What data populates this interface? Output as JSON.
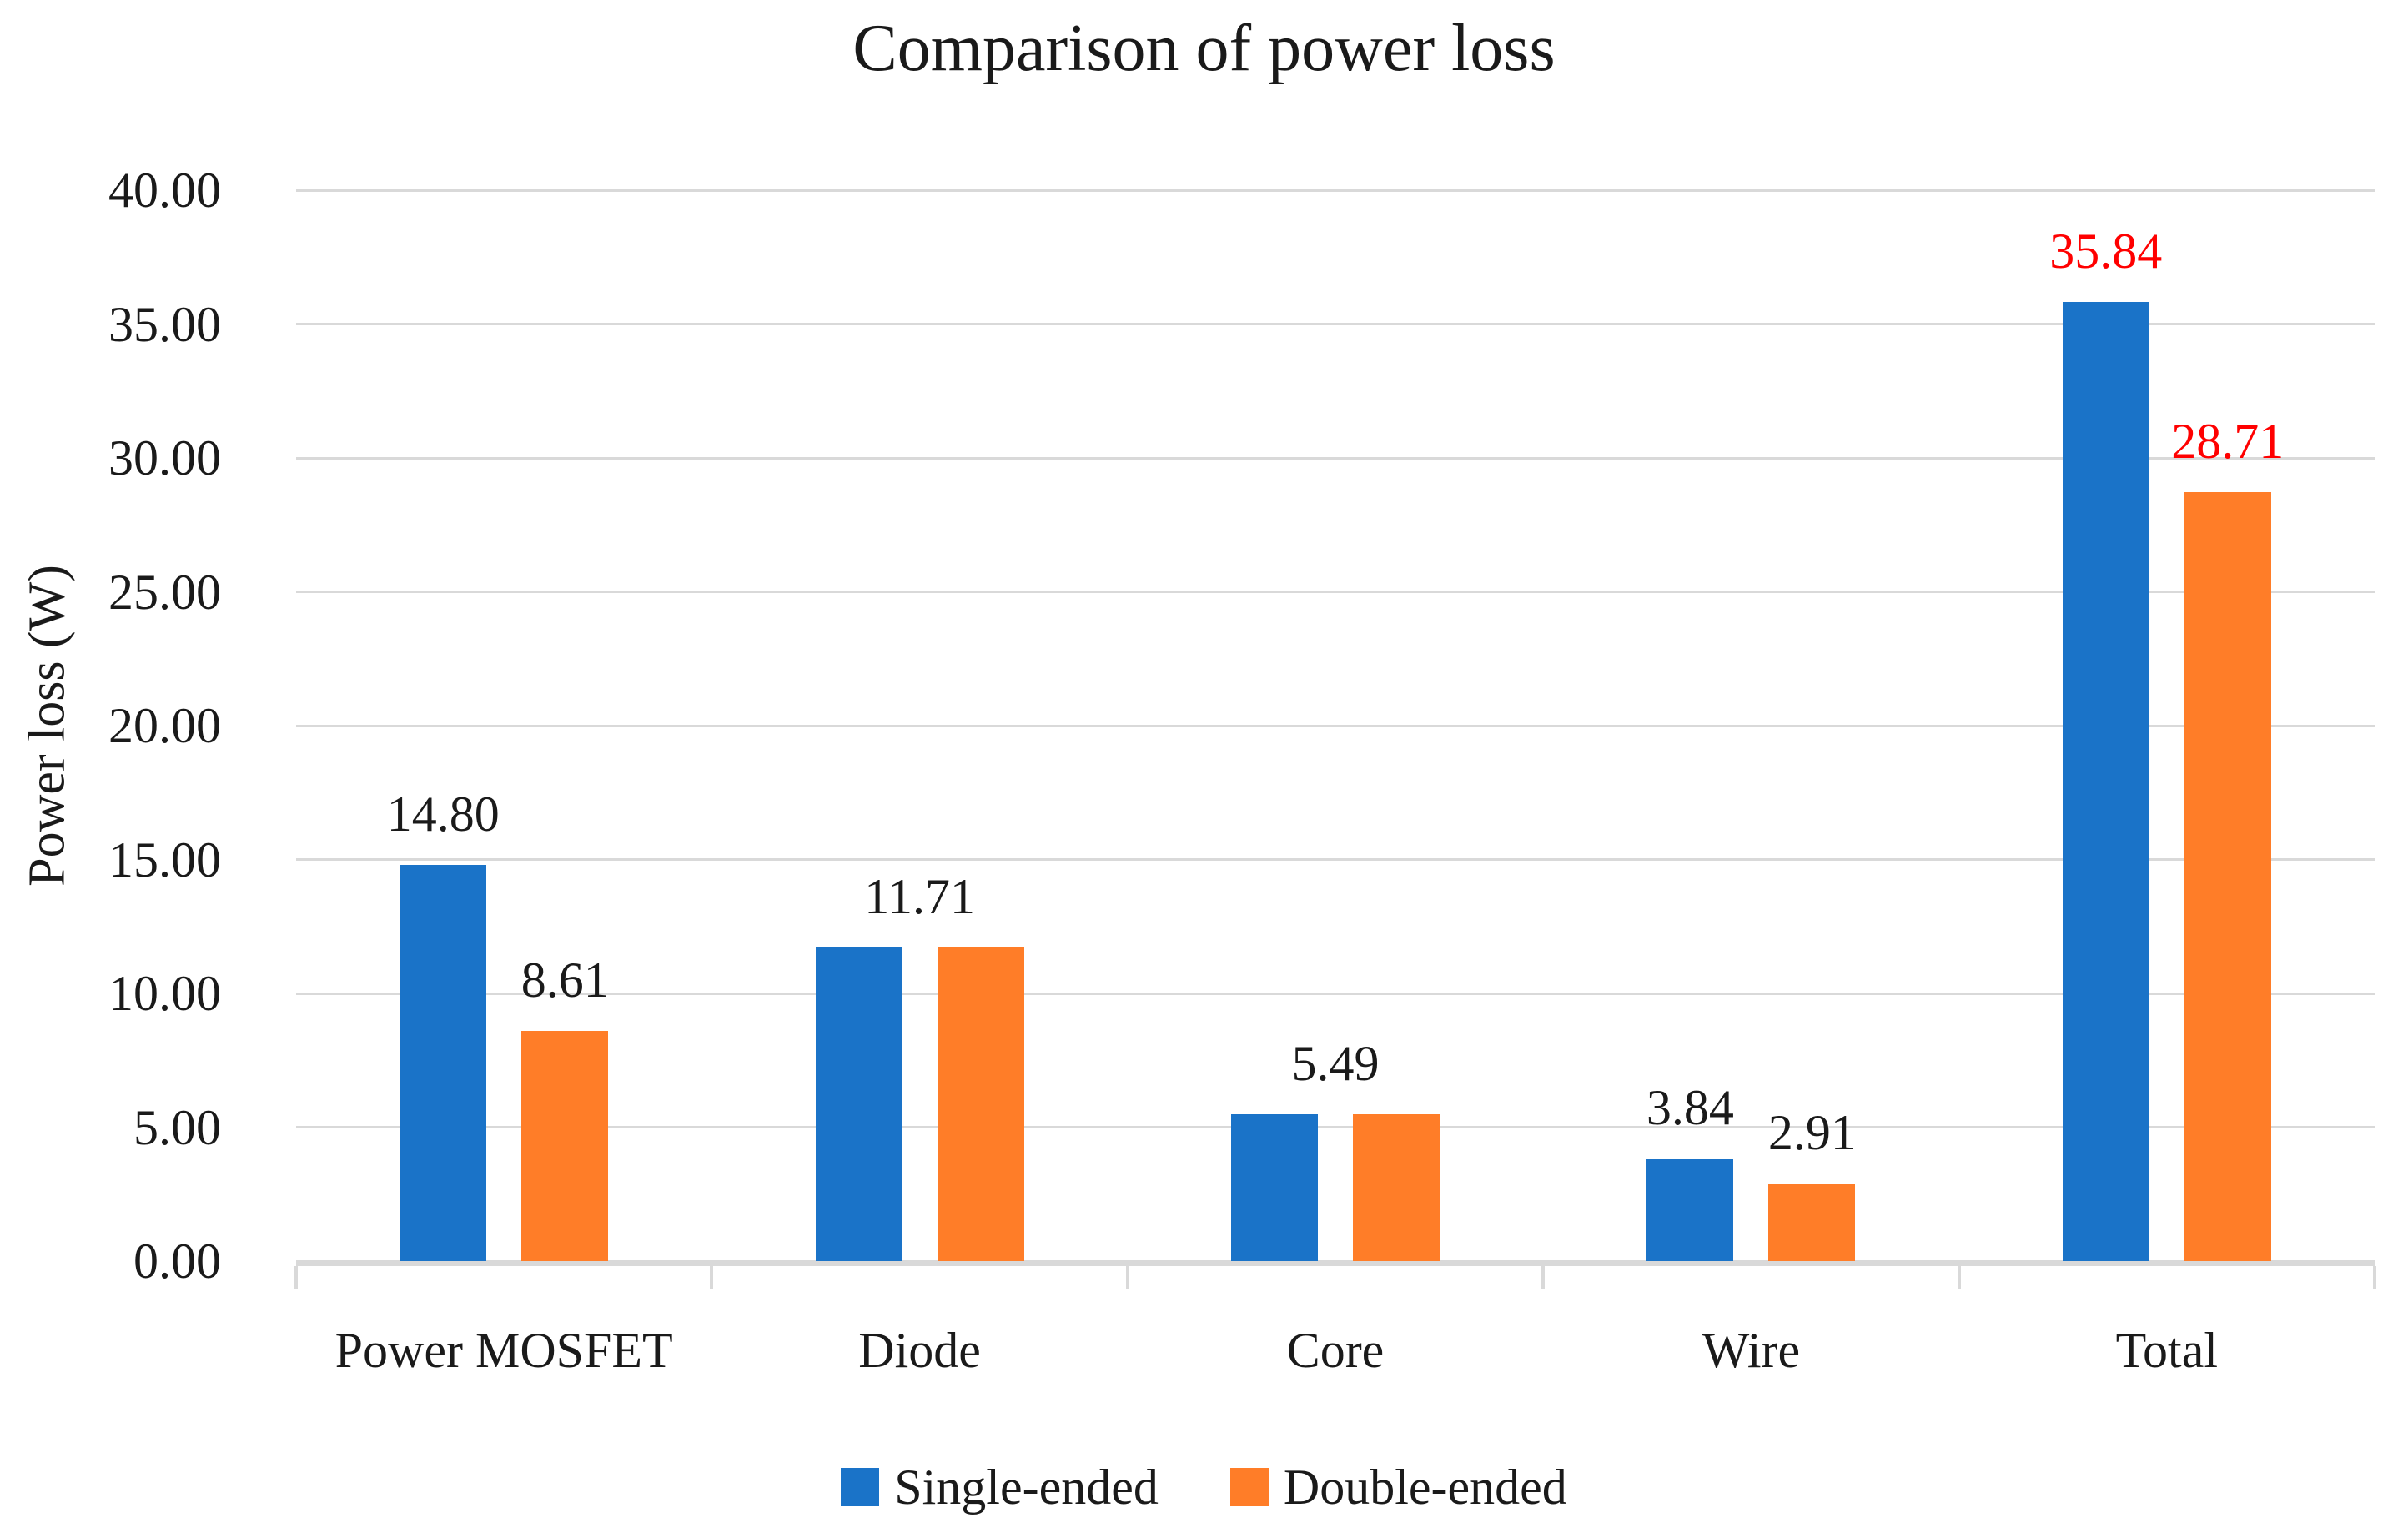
{
  "chart_data": {
    "type": "bar",
    "title": "Comparison of power loss",
    "xlabel": "",
    "ylabel": "Power loss (W)",
    "ylim": [
      0,
      40
    ],
    "ytick_labels": [
      "0.00",
      "5.00",
      "10.00",
      "15.00",
      "20.00",
      "25.00",
      "30.00",
      "35.00",
      "40.00"
    ],
    "grid": true,
    "legend_position": "bottom",
    "categories": [
      "Power MOSFET",
      "Diode",
      "Core",
      "Wire",
      "Total"
    ],
    "series": [
      {
        "name": "Single-ended",
        "color": "#1A73C8",
        "values": [
          14.8,
          11.71,
          5.49,
          3.84,
          35.84
        ]
      },
      {
        "name": "Double-ended",
        "color": "#FF7D28",
        "values": [
          8.61,
          11.71,
          5.49,
          2.91,
          28.71
        ]
      }
    ],
    "data_labels": [
      {
        "text": "14.80",
        "category": 0,
        "anchor": "series-0",
        "color": "#1A1A1A"
      },
      {
        "text": "8.61",
        "category": 0,
        "anchor": "series-1",
        "color": "#1A1A1A"
      },
      {
        "text": "11.71",
        "category": 1,
        "anchor": "group",
        "color": "#1A1A1A"
      },
      {
        "text": "5.49",
        "category": 2,
        "anchor": "group",
        "color": "#1A1A1A"
      },
      {
        "text": "3.84",
        "category": 3,
        "anchor": "series-0",
        "color": "#1A1A1A"
      },
      {
        "text": "2.91",
        "category": 3,
        "anchor": "series-1",
        "color": "#1A1A1A"
      },
      {
        "text": "35.84",
        "category": 4,
        "anchor": "series-0",
        "color": "#FF0000"
      },
      {
        "text": "28.71",
        "category": 4,
        "anchor": "series-1",
        "color": "#FF0000"
      }
    ],
    "colors": {
      "gridline": "#D9D9D9",
      "axis_line": "#D9D9D9",
      "text": "#1A1A1A",
      "highlight_label": "#FF0000"
    }
  }
}
